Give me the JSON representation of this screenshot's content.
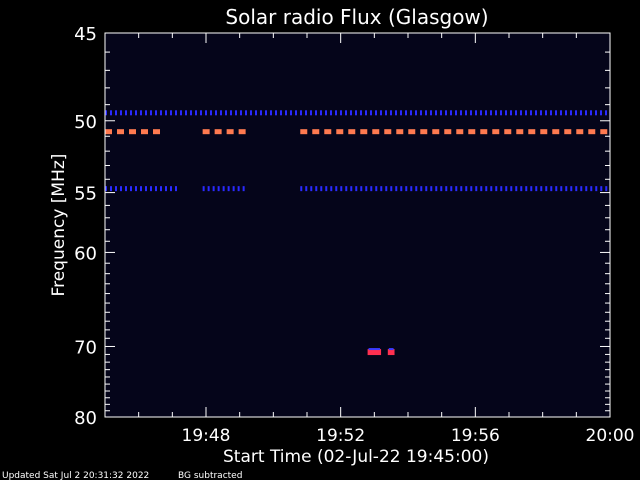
{
  "chart_data": {
    "type": "heatmap",
    "title": "Solar radio Flux (Glasgow)",
    "xlabel": "Start Time (02-Jul-22 19:45:00)",
    "ylabel": "Frequency [MHz]",
    "x_range_minutes": [
      0,
      15
    ],
    "y_range_mhz": [
      45,
      80
    ],
    "y_ticks": [
      {
        "value": 45,
        "label": "45"
      },
      {
        "value": 50,
        "label": "50"
      },
      {
        "value": 55,
        "label": "55"
      },
      {
        "value": 60,
        "label": "60"
      },
      {
        "value": 70,
        "label": "70"
      },
      {
        "value": 80,
        "label": "80"
      }
    ],
    "x_ticks": [
      {
        "value": 3,
        "label": "19:48"
      },
      {
        "value": 7,
        "label": "19:52"
      },
      {
        "value": 11,
        "label": "19:56"
      },
      {
        "value": 15,
        "label": "20:00"
      }
    ],
    "bands": [
      {
        "freq": 49.5,
        "color": "#2a2aff",
        "segments": [
          [
            0,
            15
          ]
        ],
        "style": "dots"
      },
      {
        "freq": 50.7,
        "color": "#ff7a50",
        "segments": [
          [
            0,
            1.8
          ],
          [
            2.9,
            4.2
          ],
          [
            5.8,
            15
          ]
        ],
        "style": "dashes"
      },
      {
        "freq": 54.7,
        "color": "#2a2aff",
        "segments": [
          [
            0,
            2.2
          ],
          [
            2.9,
            4.2
          ],
          [
            5.8,
            15
          ]
        ],
        "style": "dots"
      },
      {
        "freq": 70.7,
        "color": "#ff3050",
        "segments": [
          [
            7.8,
            8.2
          ],
          [
            8.4,
            8.6
          ]
        ],
        "style": "blob"
      }
    ],
    "background_color": "#05051a",
    "grid": false
  },
  "footer": {
    "updated": "Updated Sat Jul  2 20:31:32 2022",
    "note": "BG subtracted"
  }
}
